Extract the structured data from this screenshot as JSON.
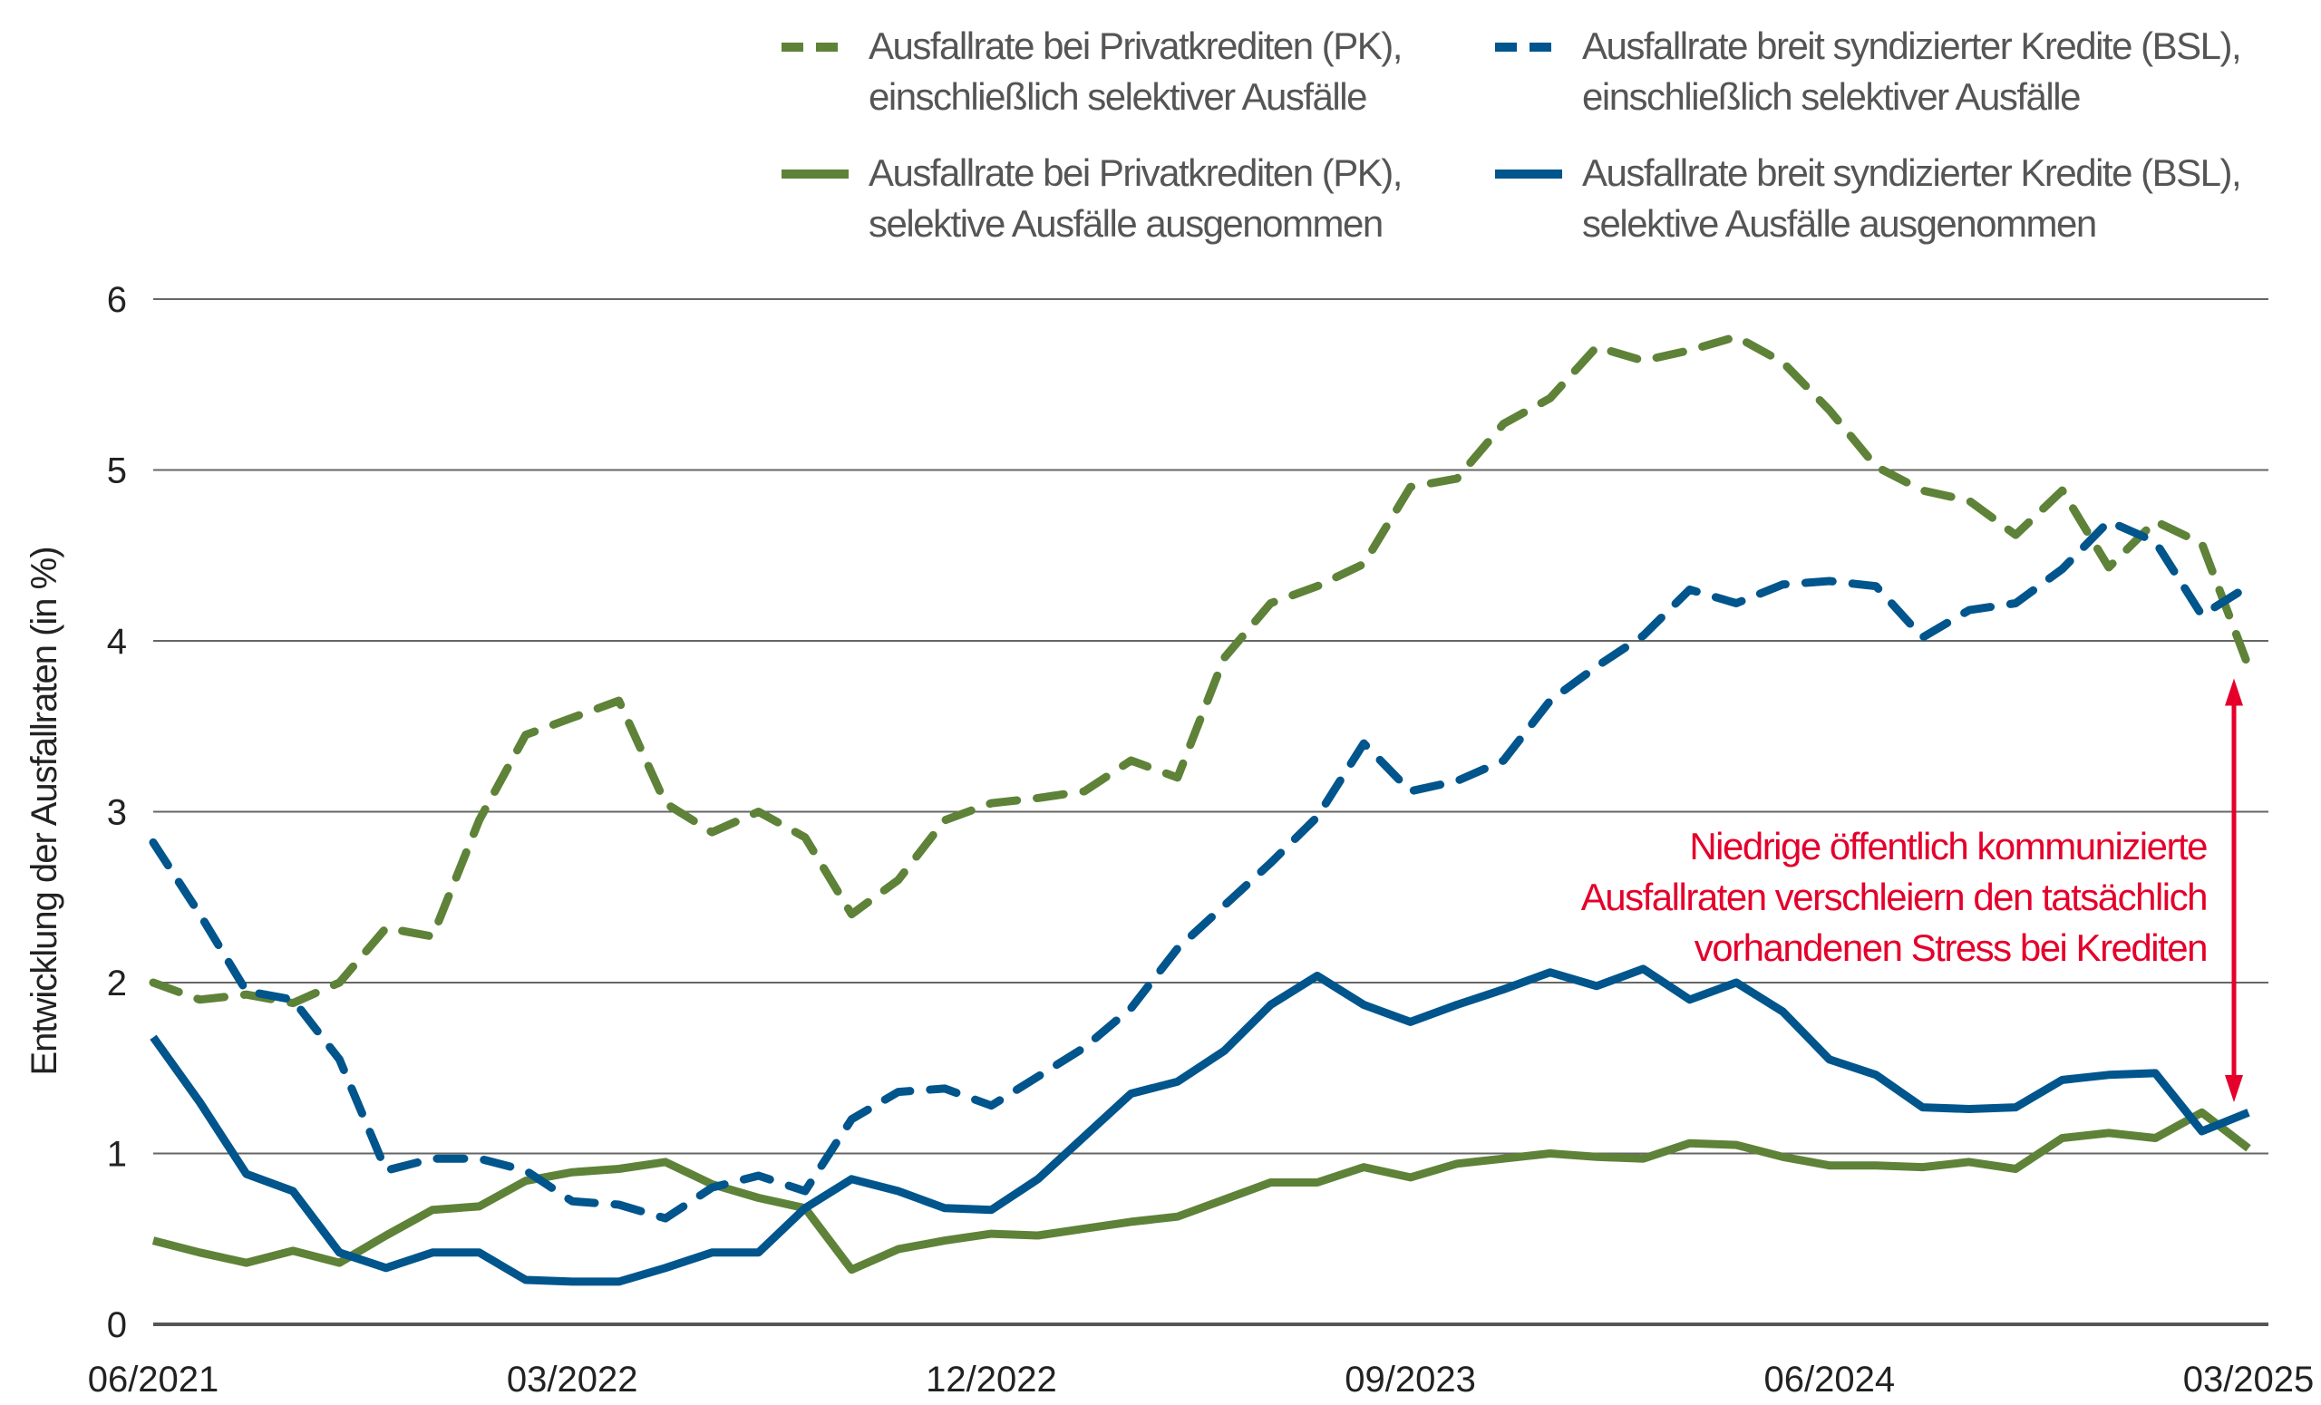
{
  "chart_data": {
    "type": "line",
    "title": "",
    "xlabel": "",
    "ylabel": "Entwicklung der Ausfallraten (in %)",
    "ylim": [
      0,
      6
    ],
    "yticks": [
      "0",
      "1",
      "2",
      "3",
      "4",
      "5",
      "6"
    ],
    "x_start": "06/2021",
    "x_end": "03/2025",
    "x_frequency": "monthly",
    "xtick_labels": [
      "06/2021",
      "03/2022",
      "12/2022",
      "09/2023",
      "06/2024",
      "03/2025"
    ],
    "grid": "horizontal",
    "legend_placement": "top",
    "series": [
      {
        "name": "Ausfallrate bei Privatkrediten (PK), einschließlich selektiver Ausfälle",
        "name_lines": [
          "Ausfallrate bei Privatkrediten (PK),",
          "einschließlich selektiver Ausfälle"
        ],
        "color": "#5e8238",
        "style": "dashed",
        "values": [
          2.0,
          1.9,
          1.93,
          1.88,
          2.0,
          2.32,
          2.27,
          2.95,
          3.45,
          3.55,
          3.65,
          3.05,
          2.88,
          3.0,
          2.85,
          2.4,
          2.6,
          2.95,
          3.05,
          3.08,
          3.12,
          3.3,
          3.2,
          3.9,
          4.22,
          4.32,
          4.45,
          4.9,
          4.95,
          5.27,
          5.42,
          5.72,
          5.64,
          5.7,
          5.78,
          5.63,
          5.35,
          5.02,
          4.88,
          4.82,
          4.62,
          4.88,
          4.43,
          4.7,
          4.57,
          3.85
        ]
      },
      {
        "name": "Ausfallrate breit syndizierter Kredite (BSL), einschließlich selektiver Ausfälle",
        "name_lines": [
          "Ausfallrate breit syndizierter Kredite (BSL),",
          "einschließlich selektiver Ausfälle"
        ],
        "color": "#00558c",
        "style": "dashed",
        "values": [
          2.82,
          2.4,
          1.95,
          1.9,
          1.55,
          0.9,
          0.97,
          0.97,
          0.9,
          0.72,
          0.7,
          0.62,
          0.8,
          0.87,
          0.78,
          1.2,
          1.36,
          1.38,
          1.28,
          1.45,
          1.62,
          1.85,
          2.2,
          2.45,
          2.7,
          2.97,
          3.4,
          3.12,
          3.18,
          3.3,
          3.65,
          3.85,
          4.03,
          4.3,
          4.22,
          4.33,
          4.35,
          4.32,
          4.02,
          4.18,
          4.22,
          4.42,
          4.7,
          4.58,
          4.15,
          4.32
        ]
      },
      {
        "name": "Ausfallrate bei Privatkrediten (PK), selektive Ausfälle ausgenommen",
        "name_lines": [
          "Ausfallrate bei Privatkrediten (PK),",
          "selektive Ausfälle ausgenommen"
        ],
        "color": "#5e8238",
        "style": "solid",
        "values": [
          0.49,
          0.42,
          0.36,
          0.43,
          0.36,
          0.52,
          0.67,
          0.69,
          0.84,
          0.89,
          0.91,
          0.95,
          0.82,
          0.74,
          0.68,
          0.32,
          0.44,
          0.49,
          0.53,
          0.52,
          0.56,
          0.6,
          0.63,
          0.73,
          0.83,
          0.83,
          0.92,
          0.86,
          0.94,
          0.97,
          1.0,
          0.98,
          0.97,
          1.06,
          1.05,
          0.98,
          0.93,
          0.93,
          0.92,
          0.95,
          0.91,
          1.09,
          1.12,
          1.09,
          1.24,
          1.03
        ]
      },
      {
        "name": "Ausfallrate breit syndizierter Kredite (BSL), selektive Ausfälle ausgenommen",
        "name_lines": [
          "Ausfallrate breit syndizierter Kredite (BSL),",
          "selektive Ausfälle ausgenommen"
        ],
        "color": "#00558c",
        "style": "solid",
        "values": [
          1.68,
          1.3,
          0.88,
          0.78,
          0.42,
          0.33,
          0.42,
          0.42,
          0.26,
          0.25,
          0.25,
          0.33,
          0.42,
          0.42,
          0.68,
          0.85,
          0.78,
          0.68,
          0.67,
          0.85,
          1.1,
          1.35,
          1.42,
          1.6,
          1.87,
          2.04,
          1.87,
          1.77,
          1.87,
          1.96,
          2.06,
          1.98,
          2.08,
          1.9,
          2.0,
          1.83,
          1.55,
          1.46,
          1.27,
          1.26,
          1.27,
          1.43,
          1.46,
          1.47,
          1.13,
          1.24
        ]
      }
    ],
    "annotation": {
      "lines": [
        "Niedrige öffentlich kommunizierte",
        "Ausfallraten verschleiern den tatsächlich",
        "vorhandenen Stress bei Krediten"
      ],
      "color": "#e4002b",
      "arrow_from": 3.78,
      "arrow_to": 1.3
    }
  }
}
